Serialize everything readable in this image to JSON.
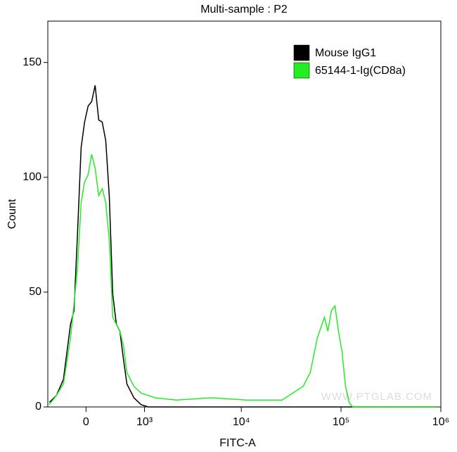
{
  "chart_data": {
    "type": "line",
    "title": "Multi-sample : P2",
    "x_label": "FITC-A",
    "y_label": "Count",
    "xscale": "biexponential",
    "x": [
      -528,
      -410,
      -303,
      -203,
      -156,
      -109,
      -63,
      -18,
      27,
      73,
      118,
      165,
      213,
      262,
      313,
      366,
      422,
      480,
      541,
      606,
      749,
      912,
      1099,
      1313,
      2197,
      5022,
      11354,
      25626,
      41756,
      49150,
      57824,
      68054,
      73837,
      80120,
      86903,
      94298,
      102304,
      110978,
      120430,
      130660,
      180922,
      346666,
      917956
    ],
    "series": [
      {
        "name": "Mouse IgG1",
        "color": "#000000",
        "values": [
          2,
          5,
          12,
          36,
          42,
          76,
          113,
          124,
          131,
          133,
          140,
          125,
          124,
          116,
          92,
          49,
          36,
          33,
          21,
          10,
          4,
          1,
          0,
          0,
          0,
          0,
          0,
          0,
          0,
          0,
          0,
          0,
          0,
          0,
          0,
          0,
          0,
          0,
          0,
          0,
          0,
          0,
          0
        ]
      },
      {
        "name": "65144-1-Ig(CD8a)",
        "color": "#22ee22",
        "values": [
          1,
          5,
          10,
          30,
          45,
          61,
          89,
          98,
          101,
          110,
          104,
          92,
          95,
          89,
          73,
          39,
          36,
          33,
          27,
          15,
          9,
          6,
          5,
          4,
          3,
          4,
          3,
          3,
          9,
          15,
          30,
          39,
          33,
          42,
          44,
          33,
          24,
          9,
          2,
          0,
          0,
          0,
          0
        ]
      }
    ],
    "xlim": [
      -556,
      1000000
    ],
    "xticks": [
      0,
      {
        "value": 1000,
        "label": "10³"
      },
      {
        "value": 10000,
        "label": "10⁴"
      },
      {
        "value": 100000,
        "label": "10⁵"
      },
      {
        "value": 1000000,
        "label": "10⁶"
      }
    ],
    "ylim": [
      0,
      168
    ],
    "yticks": [
      0,
      50,
      100,
      150
    ],
    "legend": "top-right",
    "watermark": "WWW.PTGLAB.COM"
  }
}
